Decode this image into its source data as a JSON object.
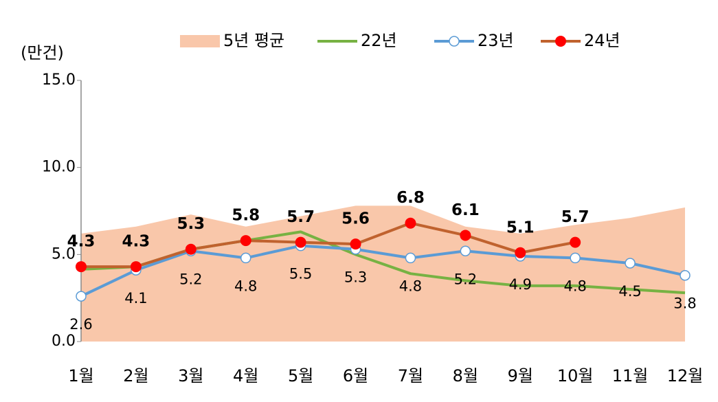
{
  "chart_data": {
    "type": "line",
    "y_label": "(만건)",
    "categories": [
      "1월",
      "2월",
      "3월",
      "4월",
      "5월",
      "6월",
      "7월",
      "8월",
      "9월",
      "10월",
      "11월",
      "12월"
    ],
    "ylim": [
      0,
      15
    ],
    "yticks": [
      {
        "value": 0,
        "label": "0.0"
      },
      {
        "value": 5,
        "label": "5.0"
      },
      {
        "value": 10,
        "label": "10.0"
      },
      {
        "value": 15,
        "label": "15.0"
      }
    ],
    "series": [
      {
        "name": "5년 평균",
        "kind": "area",
        "color": "#f9c7aa",
        "values": [
          6.2,
          6.6,
          7.3,
          6.6,
          7.2,
          7.8,
          7.8,
          6.6,
          6.2,
          6.7,
          7.1,
          7.7
        ]
      },
      {
        "name": "22년",
        "kind": "line",
        "color": "#77b243",
        "values": [
          4.15,
          4.3,
          5.3,
          5.8,
          6.3,
          5.0,
          3.9,
          3.5,
          3.2,
          3.2,
          3.0,
          2.8
        ]
      },
      {
        "name": "23년",
        "kind": "line",
        "color": "#5b9bd5",
        "marker": "open",
        "labels": "below",
        "values": [
          2.6,
          4.1,
          5.2,
          4.8,
          5.5,
          5.3,
          4.8,
          5.2,
          4.9,
          4.8,
          4.5,
          3.8
        ]
      },
      {
        "name": "24년",
        "kind": "line",
        "color": "#c0622e",
        "marker_color": "#ff0000",
        "marker": "filled",
        "labels": "above",
        "values": [
          4.3,
          4.3,
          5.3,
          5.8,
          5.7,
          5.6,
          6.8,
          6.1,
          5.1,
          5.7,
          null,
          null
        ]
      }
    ]
  }
}
